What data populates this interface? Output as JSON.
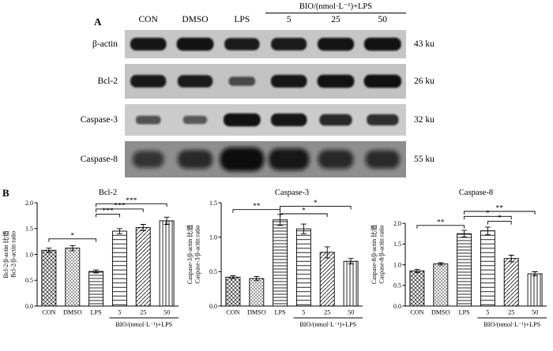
{
  "figure": {
    "panel_a_label": "A",
    "panel_b_label": "B",
    "treatment_header": "BIO/(nmol·L⁻¹)+LPS",
    "lanes": [
      "CON",
      "DMSO",
      "LPS",
      "5",
      "25",
      "50"
    ],
    "blots": [
      {
        "protein": "β-actin",
        "weight": "43 ku",
        "bg": "#c6c6c6",
        "diffuse": false,
        "bands": [
          0.9,
          0.95,
          0.85,
          0.88,
          0.92,
          0.95
        ]
      },
      {
        "protein": "Bcl-2",
        "weight": "26 ku",
        "bg": "#c2c2c2",
        "diffuse": false,
        "bands": [
          0.88,
          0.85,
          0.4,
          0.9,
          0.95,
          0.97
        ]
      },
      {
        "protein": "Caspase-3",
        "weight": "32 ku",
        "bg": "#cbcbcb",
        "diffuse": false,
        "bands": [
          0.32,
          0.28,
          0.95,
          0.9,
          0.72,
          0.68
        ]
      },
      {
        "protein": "Caspase-8",
        "weight": "55 ku",
        "bg": "#8e8e8e",
        "diffuse": true,
        "bands": [
          0.45,
          0.6,
          1.0,
          0.85,
          0.62,
          0.58
        ]
      }
    ]
  },
  "chart_data": [
    {
      "type": "bar",
      "title": "Bcl-2",
      "ylabel_cn": "Bcl-2/β-actin 比值",
      "ylabel_en": "Bcl-2/β-actin ratio",
      "categories": [
        "CON",
        "DMSO",
        "LPS",
        "5",
        "25",
        "50"
      ],
      "values": [
        1.08,
        1.12,
        0.67,
        1.45,
        1.52,
        1.65
      ],
      "errors": [
        0.04,
        0.05,
        0.03,
        0.05,
        0.06,
        0.07
      ],
      "ylim": [
        0,
        2.0
      ],
      "yticks": [
        0,
        0.5,
        1.0,
        1.5,
        2.0
      ],
      "group_label": "BIO/(nmol·L⁻¹)+LPS",
      "significance": [
        {
          "a": "CON",
          "b": "LPS",
          "label": "*",
          "y": 1.3
        },
        {
          "a": "LPS",
          "b": "5",
          "label": "***",
          "y": 1.78
        },
        {
          "a": "LPS",
          "b": "25",
          "label": "***",
          "y": 1.88
        },
        {
          "a": "LPS",
          "b": "50",
          "label": "***",
          "y": 1.98
        }
      ]
    },
    {
      "type": "bar",
      "title": "Caspase-3",
      "ylabel_cn": "Caspase-3/β-actin 比值",
      "ylabel_en": "Caspase-3/β-actin ratio",
      "categories": [
        "CON",
        "DMSO",
        "LPS",
        "5",
        "25",
        "50"
      ],
      "values": [
        0.42,
        0.4,
        1.25,
        1.12,
        0.78,
        0.65
      ],
      "errors": [
        0.02,
        0.03,
        0.08,
        0.07,
        0.08,
        0.04
      ],
      "ylim": [
        0,
        1.5
      ],
      "yticks": [
        0,
        0.5,
        1.0,
        1.5
      ],
      "group_label": "BIO/(nmol·L⁻¹)+LPS",
      "significance": [
        {
          "a": "CON",
          "b": "LPS",
          "label": "**",
          "y": 1.4
        },
        {
          "a": "LPS",
          "b": "25",
          "label": "*",
          "y": 1.34
        },
        {
          "a": "LPS",
          "b": "50",
          "label": "*",
          "y": 1.45
        }
      ]
    },
    {
      "type": "bar",
      "title": "Caspase-8",
      "ylabel_cn": "Caspase-8/β-actin 比值",
      "ylabel_en": "Caspase-8/β-actin ratio",
      "categories": [
        "CON",
        "DMSO",
        "LPS",
        "5",
        "25",
        "50"
      ],
      "values": [
        0.85,
        1.02,
        1.75,
        1.82,
        1.15,
        0.78
      ],
      "errors": [
        0.04,
        0.03,
        0.08,
        0.09,
        0.08,
        0.05
      ],
      "ylim": [
        0,
        2.5
      ],
      "yticks": [
        0,
        0.5,
        1.0,
        1.5,
        2.0
      ],
      "group_label": "BIO/(nmol·L⁻¹)+LPS",
      "significance": [
        {
          "a": "CON",
          "b": "LPS",
          "label": "**",
          "y": 1.95
        },
        {
          "a": "5",
          "b": "25",
          "label": "*",
          "y": 2.05
        },
        {
          "a": "LPS",
          "b": "25",
          "label": "*",
          "y": 2.17
        },
        {
          "a": "LPS",
          "b": "50",
          "label": "**",
          "y": 2.29
        }
      ]
    }
  ]
}
